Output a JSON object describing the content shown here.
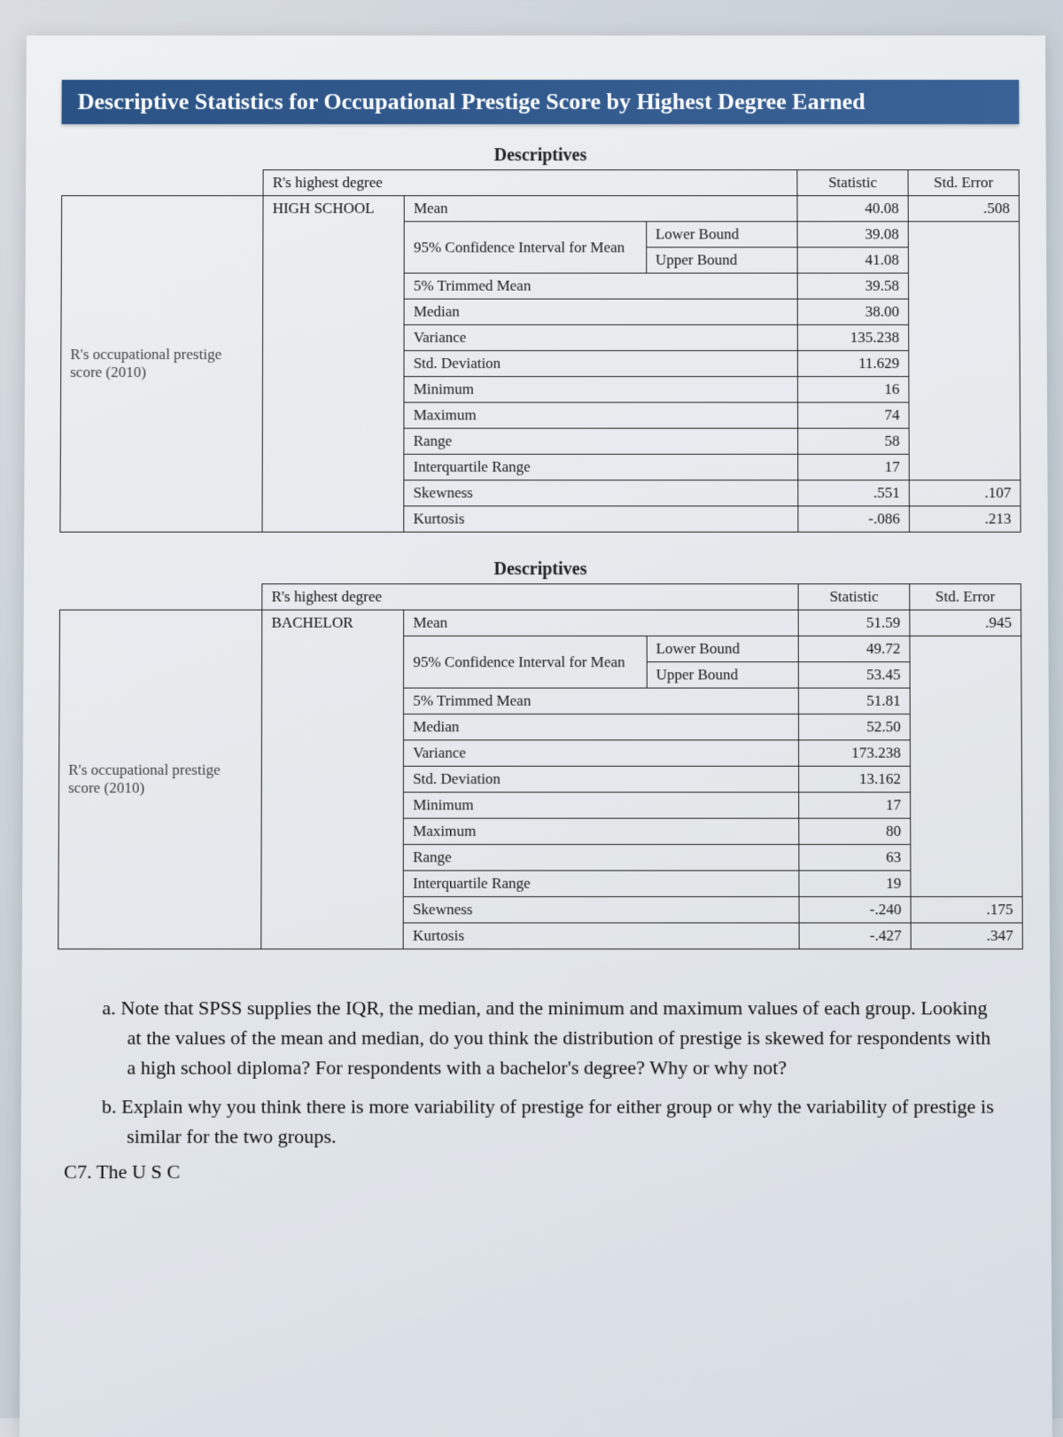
{
  "banner": "Descriptive Statistics for Occupational Prestige Score by Highest Degree Earned",
  "section_title": "Descriptives",
  "row_label": "R's occupational prestige score (2010)",
  "degree_header": "R's highest degree",
  "col_statistic": "Statistic",
  "col_stderr": "Std. Error",
  "metrics": {
    "mean": "Mean",
    "ci": "95% Confidence Interval for Mean",
    "lb": "Lower Bound",
    "ub": "Upper Bound",
    "trim": "5% Trimmed Mean",
    "median": "Median",
    "variance": "Variance",
    "sd": "Std. Deviation",
    "min": "Minimum",
    "max": "Maximum",
    "range": "Range",
    "iqr": "Interquartile Range",
    "skew": "Skewness",
    "kurt": "Kurtosis"
  },
  "tables": [
    {
      "degree": "HIGH SCHOOL",
      "mean": "40.08",
      "mean_se": ".508",
      "lb": "39.08",
      "ub": "41.08",
      "trim": "39.58",
      "median": "38.00",
      "variance": "135.238",
      "sd": "11.629",
      "min": "16",
      "max": "74",
      "range": "58",
      "iqr": "17",
      "skew": ".551",
      "skew_se": ".107",
      "kurt": "-.086",
      "kurt_se": ".213"
    },
    {
      "degree": "BACHELOR",
      "mean": "51.59",
      "mean_se": ".945",
      "lb": "49.72",
      "ub": "53.45",
      "trim": "51.81",
      "median": "52.50",
      "variance": "173.238",
      "sd": "13.162",
      "min": "17",
      "max": "80",
      "range": "63",
      "iqr": "19",
      "skew": "-.240",
      "skew_se": ".175",
      "kurt": "-.427",
      "kurt_se": ".347"
    }
  ],
  "questions": {
    "a": "a.  Note that SPSS supplies the IQR, the median, and the minimum and maximum values of each group. Looking at the values of the mean and median, do you think the distribution of prestige is skewed for respondents with a high school diploma? For respondents with a bachelor's degree? Why or why not?",
    "b": "b.  Explain why you think there is more variability of prestige for either group or why the variability of prestige is similar for the two groups."
  },
  "cutoff": "C7.  The U S  C",
  "style": {
    "banner_bg": "#2a5285",
    "banner_text": "#ffffff",
    "border_color": "#222222",
    "page_bg_top": "#eef0f2",
    "page_bg_bottom": "#d6dce2",
    "body_font": "Georgia, Times New Roman, serif",
    "banner_fontsize": 26,
    "table_fontsize": 17,
    "question_fontsize": 22
  }
}
